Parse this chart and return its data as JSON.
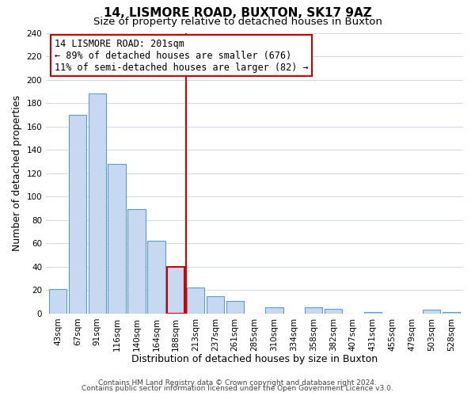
{
  "title": "14, LISMORE ROAD, BUXTON, SK17 9AZ",
  "subtitle": "Size of property relative to detached houses in Buxton",
  "xlabel": "Distribution of detached houses by size in Buxton",
  "ylabel": "Number of detached properties",
  "bar_labels": [
    "43sqm",
    "67sqm",
    "91sqm",
    "116sqm",
    "140sqm",
    "164sqm",
    "188sqm",
    "213sqm",
    "237sqm",
    "261sqm",
    "285sqm",
    "310sqm",
    "334sqm",
    "358sqm",
    "382sqm",
    "407sqm",
    "431sqm",
    "455sqm",
    "479sqm",
    "503sqm",
    "528sqm"
  ],
  "bar_values": [
    21,
    170,
    188,
    128,
    89,
    62,
    40,
    22,
    15,
    11,
    0,
    5,
    0,
    5,
    4,
    0,
    1,
    0,
    0,
    3,
    1
  ],
  "bar_color": "#c6d9f0",
  "bar_edge_color": "#5b9bd5",
  "highlight_bar_index": 6,
  "highlight_bar_edge_color": "#cc0000",
  "vline_x": 6.5,
  "vline_color": "#cc0000",
  "ylim": [
    0,
    240
  ],
  "yticks": [
    0,
    20,
    40,
    60,
    80,
    100,
    120,
    140,
    160,
    180,
    200,
    220,
    240
  ],
  "annotation_title": "14 LISMORE ROAD: 201sqm",
  "annotation_line1": "← 89% of detached houses are smaller (676)",
  "annotation_line2": "11% of semi-detached houses are larger (82) →",
  "footer1": "Contains HM Land Registry data © Crown copyright and database right 2024.",
  "footer2": "Contains public sector information licensed under the Open Government Licence v3.0.",
  "title_fontsize": 11,
  "subtitle_fontsize": 9.5,
  "axis_label_fontsize": 9,
  "tick_fontsize": 7.5,
  "annotation_fontsize": 8.5,
  "footer_fontsize": 6.5,
  "background_color": "#ffffff",
  "grid_color": "#d0d8e8",
  "vline_linewidth": 1.5,
  "bar_linewidth": 0.8,
  "highlight_linewidth": 1.5
}
